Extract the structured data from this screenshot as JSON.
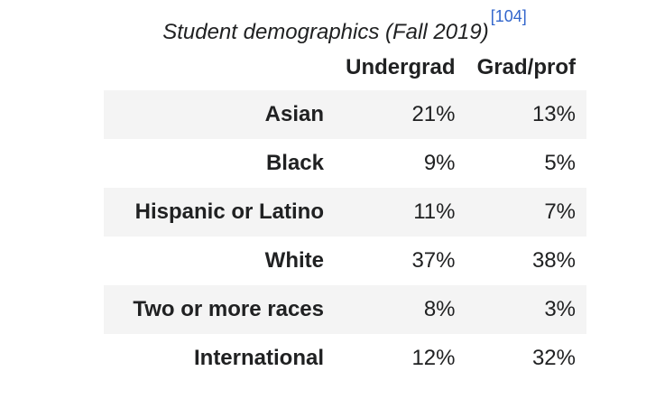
{
  "caption": {
    "title": "Student demographics (Fall 2019)",
    "ref": "[104]"
  },
  "table": {
    "columns": [
      "",
      "Undergrad",
      "Grad/prof"
    ],
    "rows": [
      {
        "label": "Asian",
        "undergrad": "21%",
        "grad": "13%"
      },
      {
        "label": "Black",
        "undergrad": "9%",
        "grad": "5%"
      },
      {
        "label": "Hispanic or Latino",
        "undergrad": "11%",
        "grad": "7%"
      },
      {
        "label": "White",
        "undergrad": "37%",
        "grad": "38%"
      },
      {
        "label": "Two or more races",
        "undergrad": "8%",
        "grad": "3%"
      },
      {
        "label": "International",
        "undergrad": "12%",
        "grad": "32%"
      }
    ]
  }
}
